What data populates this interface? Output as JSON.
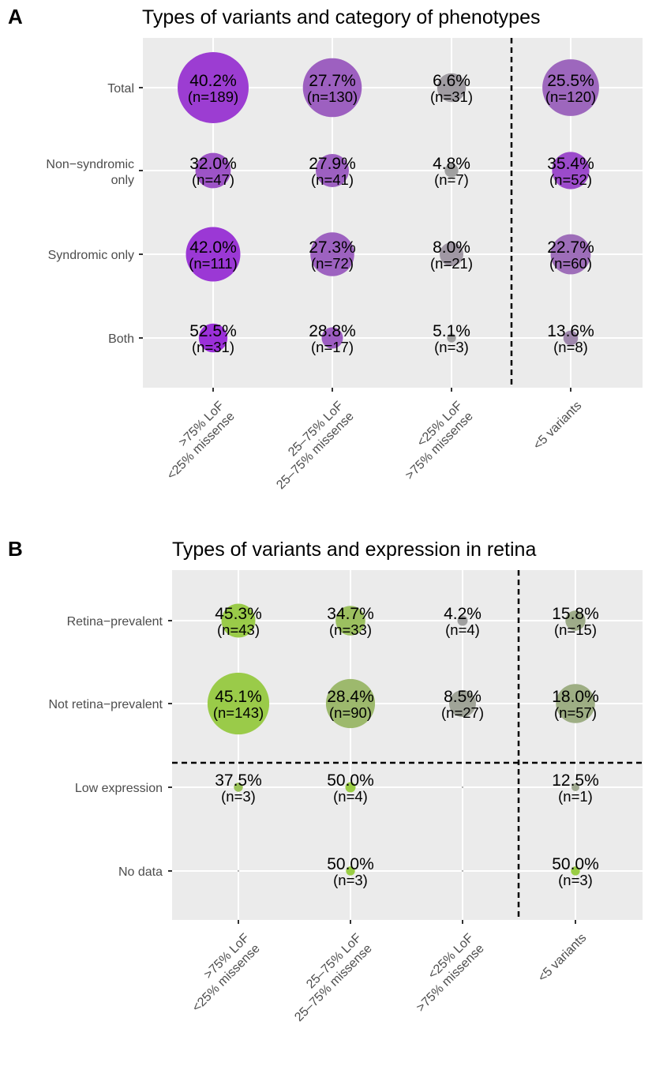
{
  "chart_data": [
    {
      "panel": "A",
      "type": "scatter",
      "title": "Types of variants and category of phenotypes",
      "x_categories": [
        ">75% LoF\n<25% missense",
        "25–75% LoF\n25–75% missense",
        "<25% LoF\n>75% missense",
        "<5 variants"
      ],
      "y_categories": [
        "Total",
        "Non−syndromic\nonly",
        "Syndromic only",
        "Both"
      ],
      "fill_gradient": [
        "#a0a0a0",
        "#9b30d9"
      ],
      "size_variable": "n",
      "color_variable": "percent",
      "dashed_lines": {
        "vertical_after_column": 3
      },
      "cells": [
        {
          "x": 0,
          "y": 0,
          "pct": 40.2,
          "n": 189,
          "pct_label": "40.2%",
          "n_label": "(n=189)"
        },
        {
          "x": 1,
          "y": 0,
          "pct": 27.7,
          "n": 130,
          "pct_label": "27.7%",
          "n_label": "(n=130)"
        },
        {
          "x": 2,
          "y": 0,
          "pct": 6.6,
          "n": 31,
          "pct_label": "6.6%",
          "n_label": "(n=31)"
        },
        {
          "x": 3,
          "y": 0,
          "pct": 25.5,
          "n": 120,
          "pct_label": "25.5%",
          "n_label": "(n=120)"
        },
        {
          "x": 0,
          "y": 1,
          "pct": 32.0,
          "n": 47,
          "pct_label": "32.0%",
          "n_label": "(n=47)"
        },
        {
          "x": 1,
          "y": 1,
          "pct": 27.9,
          "n": 41,
          "pct_label": "27.9%",
          "n_label": "(n=41)"
        },
        {
          "x": 2,
          "y": 1,
          "pct": 4.8,
          "n": 7,
          "pct_label": "4.8%",
          "n_label": "(n=7)"
        },
        {
          "x": 3,
          "y": 1,
          "pct": 35.4,
          "n": 52,
          "pct_label": "35.4%",
          "n_label": "(n=52)"
        },
        {
          "x": 0,
          "y": 2,
          "pct": 42.0,
          "n": 111,
          "pct_label": "42.0%",
          "n_label": "(n=111)"
        },
        {
          "x": 1,
          "y": 2,
          "pct": 27.3,
          "n": 72,
          "pct_label": "27.3%",
          "n_label": "(n=72)"
        },
        {
          "x": 2,
          "y": 2,
          "pct": 8.0,
          "n": 21,
          "pct_label": "8.0%",
          "n_label": "(n=21)"
        },
        {
          "x": 3,
          "y": 2,
          "pct": 22.7,
          "n": 60,
          "pct_label": "22.7%",
          "n_label": "(n=60)"
        },
        {
          "x": 0,
          "y": 3,
          "pct": 52.5,
          "n": 31,
          "pct_label": "52.5%",
          "n_label": "(n=31)"
        },
        {
          "x": 1,
          "y": 3,
          "pct": 28.8,
          "n": 17,
          "pct_label": "28.8%",
          "n_label": "(n=17)"
        },
        {
          "x": 2,
          "y": 3,
          "pct": 5.1,
          "n": 3,
          "pct_label": "5.1%",
          "n_label": "(n=3)"
        },
        {
          "x": 3,
          "y": 3,
          "pct": 13.6,
          "n": 8,
          "pct_label": "13.6%",
          "n_label": "(n=8)"
        }
      ]
    },
    {
      "panel": "B",
      "type": "scatter",
      "title": "Types of variants and expression in retina",
      "x_categories": [
        ">75% LoF\n<25% missense",
        "25–75% LoF\n25–75% missense",
        "<25% LoF\n>75% missense",
        "<5 variants"
      ],
      "y_categories": [
        "Retina−prevalent",
        "Not retina−prevalent",
        "Low expression",
        "No data"
      ],
      "fill_gradient": [
        "#a0a0a0",
        "#9acd45"
      ],
      "size_variable": "n",
      "color_variable": "percent",
      "dashed_lines": {
        "vertical_after_column": 3,
        "horizontal_after_row": 2
      },
      "cells": [
        {
          "x": 0,
          "y": 0,
          "pct": 45.3,
          "n": 43,
          "pct_label": "45.3%",
          "n_label": "(n=43)"
        },
        {
          "x": 1,
          "y": 0,
          "pct": 34.7,
          "n": 33,
          "pct_label": "34.7%",
          "n_label": "(n=33)"
        },
        {
          "x": 2,
          "y": 0,
          "pct": 4.2,
          "n": 4,
          "pct_label": "4.2%",
          "n_label": "(n=4)"
        },
        {
          "x": 3,
          "y": 0,
          "pct": 15.8,
          "n": 15,
          "pct_label": "15.8%",
          "n_label": "(n=15)"
        },
        {
          "x": 0,
          "y": 1,
          "pct": 45.1,
          "n": 143,
          "pct_label": "45.1%",
          "n_label": "(n=143)"
        },
        {
          "x": 1,
          "y": 1,
          "pct": 28.4,
          "n": 90,
          "pct_label": "28.4%",
          "n_label": "(n=90)"
        },
        {
          "x": 2,
          "y": 1,
          "pct": 8.5,
          "n": 27,
          "pct_label": "8.5%",
          "n_label": "(n=27)"
        },
        {
          "x": 3,
          "y": 1,
          "pct": 18.0,
          "n": 57,
          "pct_label": "18.0%",
          "n_label": "(n=57)"
        },
        {
          "x": 0,
          "y": 2,
          "pct": 37.5,
          "n": 3,
          "pct_label": "37.5%",
          "n_label": "(n=3)"
        },
        {
          "x": 1,
          "y": 2,
          "pct": 50.0,
          "n": 4,
          "pct_label": "50.0%",
          "n_label": "(n=4)"
        },
        {
          "x": 2,
          "y": 2,
          "pct": 0,
          "n": 0,
          "pct_label": "",
          "n_label": ""
        },
        {
          "x": 3,
          "y": 2,
          "pct": 12.5,
          "n": 1,
          "pct_label": "12.5%",
          "n_label": "(n=1)"
        },
        {
          "x": 0,
          "y": 3,
          "pct": 0,
          "n": 0,
          "pct_label": "",
          "n_label": ""
        },
        {
          "x": 1,
          "y": 3,
          "pct": 50.0,
          "n": 3,
          "pct_label": "50.0%",
          "n_label": "(n=3)"
        },
        {
          "x": 2,
          "y": 3,
          "pct": 0,
          "n": 0,
          "pct_label": "",
          "n_label": ""
        },
        {
          "x": 3,
          "y": 3,
          "pct": 50.0,
          "n": 3,
          "pct_label": "50.0%",
          "n_label": "(n=3)"
        }
      ]
    }
  ]
}
